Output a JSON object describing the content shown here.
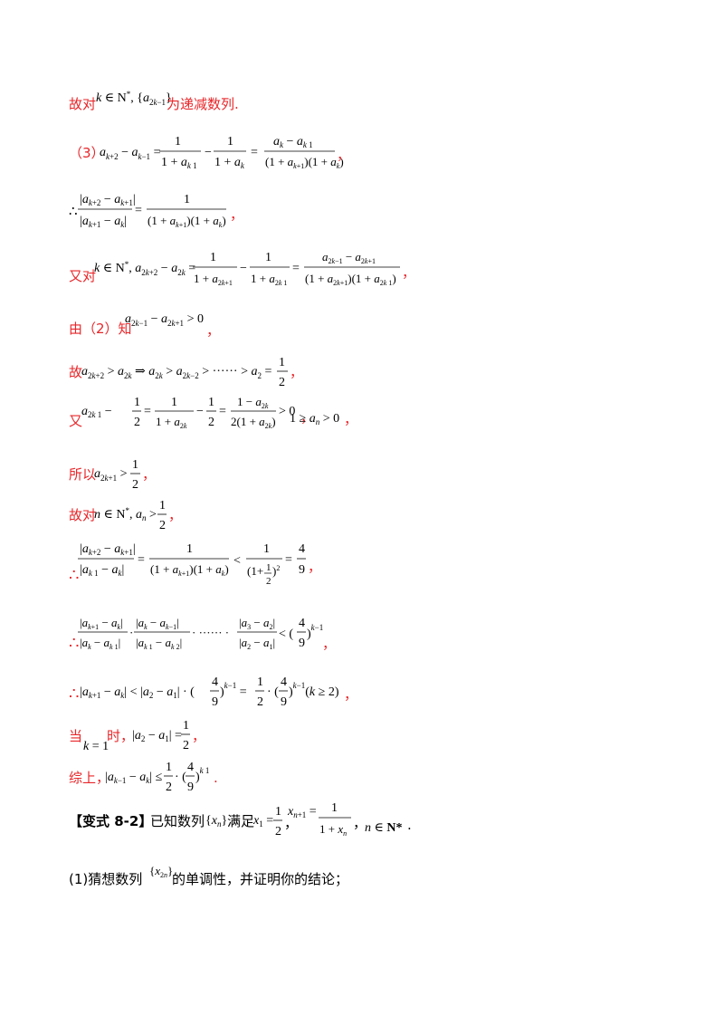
{
  "colors": {
    "text": "#000000",
    "accent_red": "#e8262a"
  },
  "lines": {
    "l1": {
      "lead": "故对",
      "cond": "k ∈ N*, {a2k−1}",
      "tail": "为递减数列."
    },
    "l2": {
      "lead": "（3）",
      "expr": "a_{k+2} − a_{k−1} = 1/(1 + a_{k−1}) − 1/(1 + a_k) = (a_k − a_{k−1}) / ((1 + a_{k+1})(1 + a_k))",
      "tail": "，"
    },
    "l3": {
      "lead": "∴",
      "expr": "|a_{k+2} − a_{k+1}| / |a_{k+1} − a_k| = 1 / ((1 + a_{k+1})(1 + a_k))",
      "tail": "，"
    },
    "l4": {
      "lead": "又对",
      "expr": "k ∈ N*, a_{2k+2} − a_{2k} = 1/(1 + a_{2k+1}) − 1/(1 + a_{2k−1}) = (a_{2k−1} − a_{2k+1}) / ((1 + a_{2k+1})(1 + a_{2k−1}))",
      "tail": "，"
    },
    "l5": {
      "lead": "由（2）知",
      "expr": "a_{2k−1} − a_{2k+1} > 0",
      "tail": "，"
    },
    "l6": {
      "lead": "故",
      "expr": "a_{2k+2} > a_{2k} ⇒ a_{2k} > a_{2k−2} > ······ > a_2 = 1/2",
      "tail": "，"
    },
    "l7": {
      "lead": "又",
      "expr": "a_{2k+1} − 1/2 = 1/(1 + a_{2k}) − 1/2 = (1 − a_{2k}) / (2(1 + a_{2k})) > 0",
      "mid": "，",
      "expr2": "1 ≥ a_n > 0",
      "tail": "，"
    },
    "l8": {
      "lead": "所以",
      "expr": "a_{2k+1} > 1/2",
      "tail": "，"
    },
    "l9": {
      "lead": "故对",
      "expr": "n ∈ N*, a_n > 1/2",
      "tail": "，"
    },
    "l10": {
      "lead": "∴",
      "expr": "|a_{k+2} − a_{k+1}| / |a_{k+1} − a_k| = 1 / ((1 + a_{k+1})(1 + a_k)) < 1/(1 + 1/2)² = 4/9",
      "tail": "，"
    },
    "l11": {
      "lead": "∴",
      "expr": "|a_{k+1} − a_k|/|a_k − a_{k−1}| · |a_k − a_{k−1}|/|a_{k−1} − a_{k−2}| · ······ · |a_3 − a_2|/|a_2 − a_1| < (4/9)^{k−1}",
      "tail": "，"
    },
    "l12": {
      "lead": "∴",
      "expr": "|a_{k+1} − a_k| < |a_2 − a_1| · (4/9)^{k−1} = 1/2 · (4/9)^{k−1} (k ≥ 2)",
      "tail": "，"
    },
    "l13": {
      "lead": "当",
      "expr": "k = 1",
      "mid": "时，",
      "expr2": "|a_2 − a_1| = 1/2",
      "tail": "，"
    },
    "l14": {
      "lead": "综上，",
      "expr": "|a_{k+1} − a_k| ≤ 1/2 · (4/9)^{k−1}",
      "tail": "."
    },
    "l15": {
      "lead": "【变式 8-2】",
      "text1": "已知数列",
      "expr1": "{x_n}",
      "text2": "满足",
      "expr2": "x_1 = 1/2",
      "sep": "，",
      "expr3": "x_{n+1} = 1/(1 + x_n)",
      "expr4": "n ∈ N*",
      "tail": "."
    },
    "l16": {
      "lead": "(1)猜想数列",
      "expr": "{x_{2n}}",
      "tail": "的单调性，并证明你的结论；"
    }
  }
}
